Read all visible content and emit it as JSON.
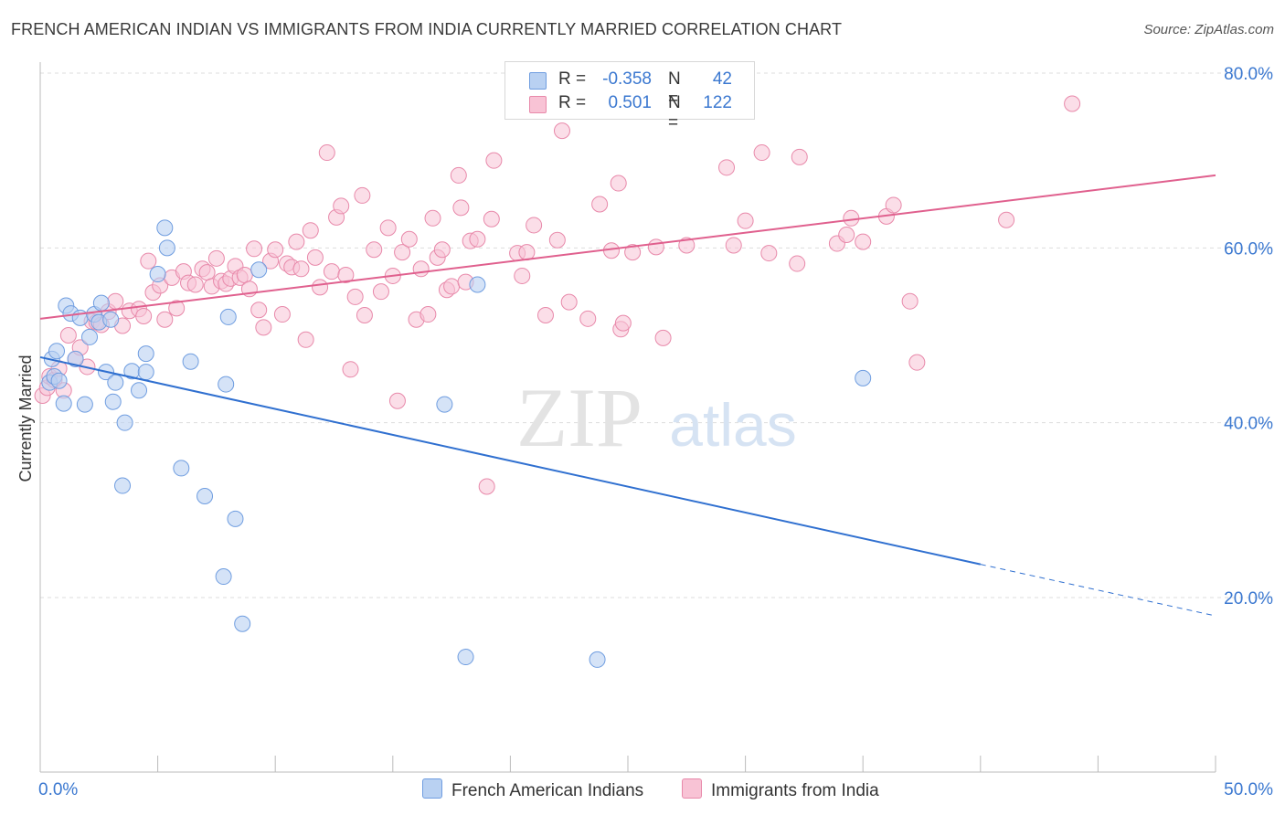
{
  "title": "FRENCH AMERICAN INDIAN VS IMMIGRANTS FROM INDIA CURRENTLY MARRIED CORRELATION CHART",
  "source": "Source: ZipAtlas.com",
  "watermark": {
    "zip": "ZIP",
    "atlas": "atlas"
  },
  "legend_top": {
    "rows": [
      {
        "r_label": "R =",
        "r_value": "-0.358",
        "n_label": "N =",
        "n_value": "42"
      },
      {
        "r_label": "R =",
        "r_value": "0.501",
        "n_label": "N =",
        "n_value": "122"
      }
    ]
  },
  "legend_bottom": [
    "French American Indians",
    "Immigrants from India"
  ],
  "colors": {
    "blue_fill": "#b9d1f2",
    "blue_stroke": "#6f9de0",
    "blue_line": "#3070d0",
    "pink_fill": "#f8c3d5",
    "pink_stroke": "#e889aa",
    "pink_line": "#e0608e",
    "tick_label": "#3b78d0",
    "grid": "#dddddd"
  },
  "chart_data": {
    "type": "scatter",
    "title": "FRENCH AMERICAN INDIAN VS IMMIGRANTS FROM INDIA CURRENTLY MARRIED CORRELATION CHART",
    "xlabel": "",
    "ylabel": "Currently Married",
    "xlim": [
      0,
      50
    ],
    "ylim": [
      0,
      85
    ],
    "x_tick_labels": [
      {
        "value": 0,
        "label": "0.0%"
      },
      {
        "value": 50,
        "label": "50.0%"
      }
    ],
    "y_tick_labels": [
      {
        "value": 20,
        "label": "20.0%"
      },
      {
        "value": 40,
        "label": "40.0%"
      },
      {
        "value": 60,
        "label": "60.0%"
      },
      {
        "value": 80,
        "label": "80.0%"
      }
    ],
    "grid": true,
    "legend_position": "bottom",
    "series": [
      {
        "name": "French American Indians",
        "R": -0.358,
        "N": 42,
        "trend": {
          "x": [
            0,
            40
          ],
          "y": [
            47.5,
            23.8
          ],
          "dashed_to": [
            50,
            17.9
          ]
        },
        "points": [
          [
            0.5,
            47.3
          ],
          [
            0.7,
            48.2
          ],
          [
            0.4,
            44.6
          ],
          [
            0.6,
            45.3
          ],
          [
            0.8,
            44.8
          ],
          [
            1.0,
            42.2
          ],
          [
            1.1,
            53.4
          ],
          [
            1.3,
            52.5
          ],
          [
            1.5,
            47.3
          ],
          [
            1.7,
            52.0
          ],
          [
            1.9,
            42.1
          ],
          [
            2.1,
            49.8
          ],
          [
            2.3,
            52.4
          ],
          [
            2.5,
            51.5
          ],
          [
            2.6,
            53.7
          ],
          [
            2.8,
            45.8
          ],
          [
            3.0,
            51.8
          ],
          [
            3.1,
            42.4
          ],
          [
            3.2,
            44.6
          ],
          [
            3.6,
            40.0
          ],
          [
            3.9,
            45.9
          ],
          [
            4.2,
            43.7
          ],
          [
            4.5,
            45.8
          ],
          [
            4.5,
            47.9
          ],
          [
            5.0,
            57.0
          ],
          [
            5.3,
            62.3
          ],
          [
            5.4,
            60.0
          ],
          [
            6.0,
            34.8
          ],
          [
            6.4,
            47.0
          ],
          [
            7.0,
            31.6
          ],
          [
            7.8,
            22.4
          ],
          [
            7.9,
            44.4
          ],
          [
            8.0,
            52.1
          ],
          [
            8.3,
            29.0
          ],
          [
            8.6,
            17.0
          ],
          [
            9.3,
            57.5
          ],
          [
            17.2,
            42.1
          ],
          [
            18.1,
            13.2
          ],
          [
            18.6,
            55.8
          ],
          [
            23.7,
            12.9
          ],
          [
            35.0,
            45.1
          ],
          [
            3.5,
            32.8
          ]
        ]
      },
      {
        "name": "Immigrants from India",
        "R": 0.501,
        "N": 122,
        "trend": {
          "x": [
            0,
            50
          ],
          "y": [
            51.9,
            68.3
          ]
        },
        "points": [
          [
            0.1,
            43.1
          ],
          [
            0.3,
            44.0
          ],
          [
            0.4,
            45.3
          ],
          [
            0.6,
            44.9
          ],
          [
            0.8,
            46.2
          ],
          [
            1.0,
            43.7
          ],
          [
            1.2,
            50.0
          ],
          [
            1.5,
            47.3
          ],
          [
            1.7,
            48.6
          ],
          [
            2.0,
            46.4
          ],
          [
            2.2,
            51.6
          ],
          [
            2.4,
            51.5
          ],
          [
            2.6,
            51.2
          ],
          [
            2.9,
            52.7
          ],
          [
            3.2,
            53.9
          ],
          [
            3.5,
            51.1
          ],
          [
            3.8,
            52.8
          ],
          [
            4.2,
            53.0
          ],
          [
            4.4,
            52.2
          ],
          [
            4.6,
            58.5
          ],
          [
            4.8,
            54.9
          ],
          [
            5.1,
            55.7
          ],
          [
            5.3,
            51.8
          ],
          [
            5.6,
            56.6
          ],
          [
            5.8,
            53.1
          ],
          [
            6.1,
            57.3
          ],
          [
            6.3,
            56.0
          ],
          [
            6.6,
            55.8
          ],
          [
            6.9,
            57.6
          ],
          [
            7.1,
            57.2
          ],
          [
            7.3,
            55.6
          ],
          [
            7.5,
            58.8
          ],
          [
            7.7,
            56.2
          ],
          [
            7.9,
            55.9
          ],
          [
            8.1,
            56.5
          ],
          [
            8.3,
            57.9
          ],
          [
            8.5,
            56.6
          ],
          [
            8.7,
            56.9
          ],
          [
            8.9,
            55.3
          ],
          [
            9.1,
            59.9
          ],
          [
            9.3,
            52.9
          ],
          [
            9.5,
            50.9
          ],
          [
            9.8,
            58.5
          ],
          [
            10.0,
            59.8
          ],
          [
            10.3,
            52.4
          ],
          [
            10.5,
            58.2
          ],
          [
            10.7,
            57.8
          ],
          [
            10.9,
            60.7
          ],
          [
            11.1,
            57.6
          ],
          [
            11.3,
            49.5
          ],
          [
            11.5,
            62.0
          ],
          [
            11.7,
            58.9
          ],
          [
            11.9,
            55.5
          ],
          [
            12.2,
            70.9
          ],
          [
            12.4,
            57.3
          ],
          [
            12.6,
            63.5
          ],
          [
            12.8,
            64.8
          ],
          [
            13.0,
            56.9
          ],
          [
            13.2,
            46.1
          ],
          [
            13.4,
            54.4
          ],
          [
            13.7,
            66.0
          ],
          [
            13.8,
            52.3
          ],
          [
            14.2,
            59.8
          ],
          [
            14.5,
            55.0
          ],
          [
            14.8,
            62.3
          ],
          [
            15.0,
            56.8
          ],
          [
            15.2,
            42.5
          ],
          [
            15.4,
            59.5
          ],
          [
            15.7,
            61.0
          ],
          [
            16.0,
            51.8
          ],
          [
            16.2,
            57.6
          ],
          [
            16.5,
            52.4
          ],
          [
            16.7,
            63.4
          ],
          [
            16.9,
            58.9
          ],
          [
            17.1,
            59.8
          ],
          [
            17.3,
            55.2
          ],
          [
            17.5,
            55.6
          ],
          [
            17.8,
            68.3
          ],
          [
            17.9,
            64.6
          ],
          [
            18.1,
            56.1
          ],
          [
            18.3,
            60.8
          ],
          [
            18.6,
            61.0
          ],
          [
            19.2,
            63.3
          ],
          [
            19.3,
            70.0
          ],
          [
            20.3,
            59.4
          ],
          [
            20.5,
            56.8
          ],
          [
            20.7,
            59.5
          ],
          [
            21.0,
            62.6
          ],
          [
            21.5,
            52.3
          ],
          [
            22.0,
            60.9
          ],
          [
            22.2,
            73.4
          ],
          [
            22.5,
            53.8
          ],
          [
            23.3,
            51.9
          ],
          [
            23.8,
            65.0
          ],
          [
            24.3,
            59.7
          ],
          [
            24.6,
            67.4
          ],
          [
            24.7,
            50.7
          ],
          [
            24.8,
            51.4
          ],
          [
            25.2,
            59.5
          ],
          [
            26.2,
            60.1
          ],
          [
            26.5,
            49.7
          ],
          [
            27.5,
            60.3
          ],
          [
            29.2,
            69.2
          ],
          [
            29.5,
            60.3
          ],
          [
            30.0,
            63.1
          ],
          [
            30.7,
            70.9
          ],
          [
            31.0,
            59.4
          ],
          [
            32.2,
            58.2
          ],
          [
            32.3,
            70.4
          ],
          [
            33.9,
            60.5
          ],
          [
            34.3,
            61.5
          ],
          [
            34.5,
            63.4
          ],
          [
            35.0,
            60.7
          ],
          [
            36.0,
            63.6
          ],
          [
            36.3,
            64.9
          ],
          [
            37.0,
            53.9
          ],
          [
            37.3,
            46.9
          ],
          [
            41.1,
            63.2
          ],
          [
            43.9,
            76.5
          ],
          [
            19.0,
            32.7
          ]
        ]
      }
    ]
  }
}
